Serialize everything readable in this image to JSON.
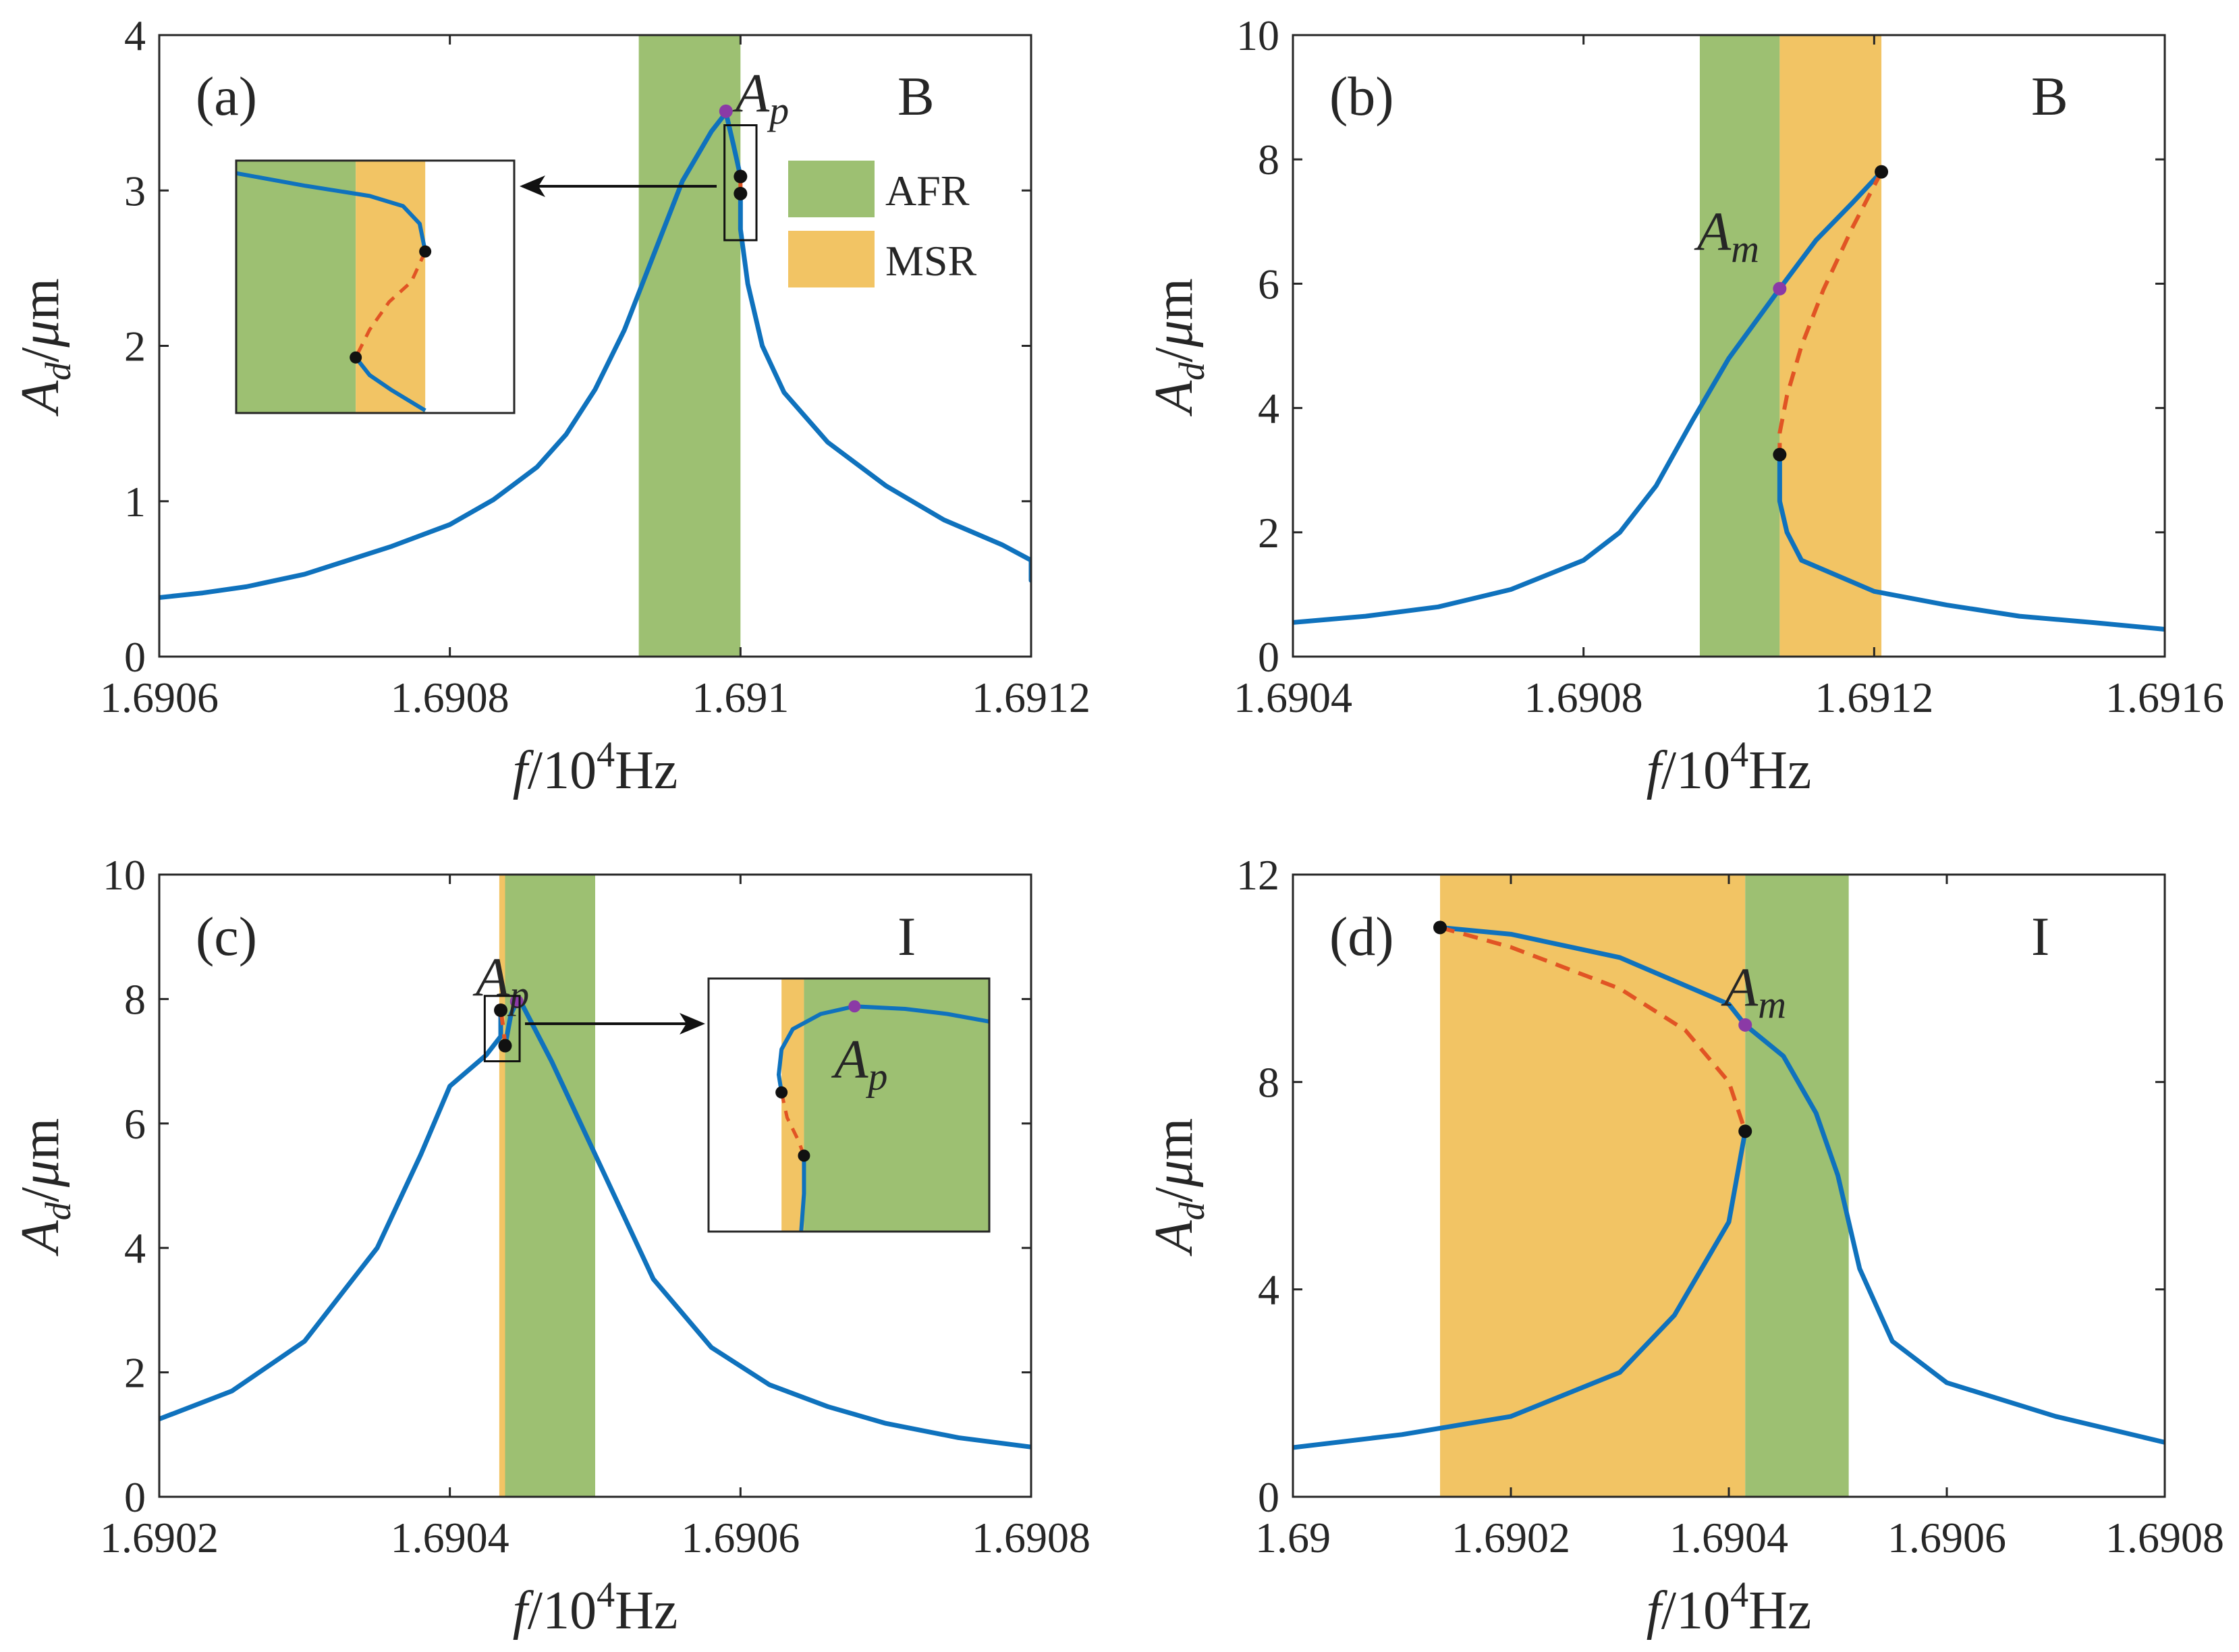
{
  "colors": {
    "afr": "#9dc072",
    "msr": "#f2c464",
    "stable_curve": "#0f72bd",
    "unstable_curve": "#e15424",
    "bifurcation_point": "#111111",
    "special_point": "#8b3aa6",
    "axis": "#262626"
  },
  "legend": {
    "entries": [
      {
        "label": "AFR",
        "color": "#9dc072"
      },
      {
        "label": "MSR",
        "color": "#f2c464"
      }
    ],
    "placement": "panel (a), upper right"
  },
  "axis_text": {
    "y_symbol": "A",
    "y_sub": "d",
    "y_unit_mu": "μ",
    "y_unit": "m",
    "x_symbol": "f",
    "x_base": "10",
    "x_exp": "4",
    "x_unit": "Hz"
  },
  "chart_data": [
    {
      "id": "a",
      "type": "line",
      "panel_label": "(a)",
      "regime_label": "B",
      "xlim": [
        1.6906,
        1.6912
      ],
      "ylim": [
        0,
        4
      ],
      "xticks": [
        1.6906,
        1.6908,
        1.691,
        1.6912
      ],
      "xtick_labels": [
        "1.6906",
        "1.6908",
        "1.691",
        "1.6912"
      ],
      "yticks": [
        0,
        1,
        2,
        3,
        4
      ],
      "ytick_labels": [
        "0",
        "1",
        "2",
        "3",
        "4"
      ],
      "regions": [
        {
          "kind": "AFR",
          "x": [
            1.69093,
            1.691
          ]
        }
      ],
      "stable_branches": [
        [
          [
            1.6906,
            0.38
          ],
          [
            1.69063,
            0.41
          ],
          [
            1.69066,
            0.45
          ],
          [
            1.6907,
            0.53
          ],
          [
            1.69073,
            0.62
          ],
          [
            1.69076,
            0.71
          ],
          [
            1.6908,
            0.85
          ],
          [
            1.69083,
            1.01
          ],
          [
            1.69086,
            1.22
          ],
          [
            1.69088,
            1.43
          ],
          [
            1.6909,
            1.72
          ],
          [
            1.69092,
            2.1
          ],
          [
            1.69094,
            2.58
          ],
          [
            1.69096,
            3.06
          ],
          [
            1.69098,
            3.38
          ],
          [
            1.69099,
            3.5
          ],
          [
            1.690995,
            3.3
          ],
          [
            1.691,
            3.09
          ]
        ],
        [
          [
            1.691,
            2.98
          ],
          [
            1.691,
            2.75
          ],
          [
            1.691005,
            2.4
          ],
          [
            1.691015,
            2.0
          ],
          [
            1.69103,
            1.7
          ],
          [
            1.69106,
            1.38
          ],
          [
            1.6911,
            1.1
          ],
          [
            1.69114,
            0.88
          ],
          [
            1.69118,
            0.72
          ],
          [
            1.6912,
            0.62
          ],
          [
            1.6912,
            0.49
          ]
        ]
      ],
      "unstable_branches": [
        [
          [
            1.691,
            3.09
          ],
          [
            1.691,
            2.98
          ]
        ]
      ],
      "bifurcation_points": [
        [
          1.691,
          3.09
        ],
        [
          1.691,
          2.98
        ]
      ],
      "special_points": [
        {
          "name": "A",
          "sub": "p",
          "x": 1.69099,
          "y": 3.51
        }
      ],
      "inset": {
        "frame": true,
        "regions": [
          {
            "kind": "AFR",
            "x": [
              0,
              0.43
            ]
          },
          {
            "kind": "MSR",
            "x": [
              0.43,
              0.68
            ]
          }
        ],
        "stable_branches": [
          [
            [
              0,
              0.95
            ],
            [
              0.25,
              0.9
            ],
            [
              0.48,
              0.86
            ],
            [
              0.6,
              0.82
            ],
            [
              0.66,
              0.75
            ],
            [
              0.68,
              0.64
            ]
          ],
          [
            [
              0.43,
              0.22
            ],
            [
              0.48,
              0.15
            ],
            [
              0.56,
              0.09
            ],
            [
              0.68,
              0.01
            ]
          ]
        ],
        "unstable_branches": [
          [
            [
              0.68,
              0.64
            ],
            [
              0.63,
              0.52
            ],
            [
              0.55,
              0.44
            ],
            [
              0.48,
              0.33
            ],
            [
              0.43,
              0.22
            ]
          ]
        ],
        "bifurcation_points": [
          [
            0.68,
            0.64
          ],
          [
            0.43,
            0.22
          ]
        ],
        "zoom_box": {
          "x": [
            1.690989,
            1.691011
          ],
          "y": [
            2.68,
            3.42
          ]
        }
      }
    },
    {
      "id": "b",
      "type": "line",
      "panel_label": "(b)",
      "regime_label": "B",
      "xlim": [
        1.6904,
        1.6916
      ],
      "ylim": [
        0,
        10
      ],
      "xticks": [
        1.6904,
        1.6908,
        1.6912,
        1.6916
      ],
      "xtick_labels": [
        "1.6904",
        "1.6908",
        "1.6912",
        "1.6916"
      ],
      "yticks": [
        0,
        2,
        4,
        6,
        8,
        10
      ],
      "ytick_labels": [
        "0",
        "2",
        "4",
        "6",
        "8",
        "10"
      ],
      "regions": [
        {
          "kind": "AFR",
          "x": [
            1.69096,
            1.69107
          ]
        },
        {
          "kind": "MSR",
          "x": [
            1.69107,
            1.69121
          ]
        }
      ],
      "stable_branches": [
        [
          [
            1.6904,
            0.55
          ],
          [
            1.6905,
            0.65
          ],
          [
            1.6906,
            0.8
          ],
          [
            1.6907,
            1.08
          ],
          [
            1.6908,
            1.55
          ],
          [
            1.69085,
            2.0
          ],
          [
            1.6909,
            2.75
          ],
          [
            1.69095,
            3.8
          ],
          [
            1.691,
            4.8
          ],
          [
            1.69107,
            5.92
          ],
          [
            1.69112,
            6.7
          ],
          [
            1.69117,
            7.3
          ],
          [
            1.69121,
            7.8
          ]
        ],
        [
          [
            1.69107,
            3.25
          ],
          [
            1.69107,
            2.5
          ],
          [
            1.69108,
            2.0
          ],
          [
            1.6911,
            1.55
          ],
          [
            1.6912,
            1.05
          ],
          [
            1.6913,
            0.83
          ],
          [
            1.6914,
            0.65
          ],
          [
            1.6915,
            0.55
          ],
          [
            1.6916,
            0.44
          ]
        ]
      ],
      "unstable_branches": [
        [
          [
            1.69121,
            7.8
          ],
          [
            1.69117,
            6.9
          ],
          [
            1.69113,
            5.9
          ],
          [
            1.6911,
            5.0
          ],
          [
            1.69108,
            4.2
          ],
          [
            1.69107,
            3.6
          ],
          [
            1.69107,
            3.25
          ]
        ]
      ],
      "bifurcation_points": [
        [
          1.69121,
          7.8
        ],
        [
          1.69107,
          3.25
        ]
      ],
      "special_points": [
        {
          "name": "A",
          "sub": "m",
          "x": 1.69107,
          "y": 5.92
        }
      ]
    },
    {
      "id": "c",
      "type": "line",
      "panel_label": "(c)",
      "regime_label": "I",
      "xlim": [
        1.6902,
        1.6908
      ],
      "ylim": [
        0,
        10
      ],
      "xticks": [
        1.6902,
        1.6904,
        1.6906,
        1.6908
      ],
      "xtick_labels": [
        "1.6902",
        "1.6904",
        "1.6906",
        "1.6908"
      ],
      "yticks": [
        0,
        2,
        4,
        6,
        8,
        10
      ],
      "ytick_labels": [
        "0",
        "2",
        "4",
        "6",
        "8",
        "10"
      ],
      "regions": [
        {
          "kind": "MSR",
          "x": [
            1.690434,
            1.690438
          ]
        },
        {
          "kind": "AFR",
          "x": [
            1.690438,
            1.6905
          ]
        }
      ],
      "stable_branches": [
        [
          [
            1.6902,
            1.25
          ],
          [
            1.69025,
            1.7
          ],
          [
            1.6903,
            2.5
          ],
          [
            1.69035,
            4.0
          ],
          [
            1.69038,
            5.5
          ],
          [
            1.6904,
            6.6
          ],
          [
            1.690425,
            7.1
          ],
          [
            1.690435,
            7.4
          ],
          [
            1.690435,
            7.82
          ]
        ],
        [
          [
            1.690438,
            7.25
          ],
          [
            1.690442,
            7.75
          ],
          [
            1.690446,
            7.96
          ],
          [
            1.69045,
            7.9
          ],
          [
            1.69047,
            7.0
          ],
          [
            1.69049,
            6.0
          ],
          [
            1.69051,
            5.0
          ],
          [
            1.69054,
            3.5
          ],
          [
            1.69058,
            2.4
          ],
          [
            1.69062,
            1.8
          ],
          [
            1.69066,
            1.45
          ],
          [
            1.6907,
            1.18
          ],
          [
            1.69075,
            0.95
          ],
          [
            1.6908,
            0.8
          ]
        ]
      ],
      "unstable_branches": [
        [
          [
            1.690435,
            7.82
          ],
          [
            1.690437,
            7.5
          ],
          [
            1.690438,
            7.25
          ]
        ]
      ],
      "bifurcation_points": [
        [
          1.690435,
          7.82
        ],
        [
          1.690438,
          7.25
        ]
      ],
      "special_points": [
        {
          "name": "A",
          "sub": "p",
          "x": 1.690446,
          "y": 7.96
        }
      ],
      "inset": {
        "frame": true,
        "regions": [
          {
            "kind": "MSR",
            "x": [
              0.26,
              0.34
            ]
          },
          {
            "kind": "AFR",
            "x": [
              0.34,
              1.0
            ]
          }
        ],
        "stable_branches": [
          [
            [
              0.26,
              0.55
            ],
            [
              0.25,
              0.62
            ],
            [
              0.26,
              0.72
            ],
            [
              0.3,
              0.8
            ],
            [
              0.4,
              0.86
            ],
            [
              0.52,
              0.89
            ],
            [
              0.7,
              0.88
            ],
            [
              0.85,
              0.86
            ],
            [
              1.0,
              0.83
            ]
          ],
          [
            [
              0.34,
              0.3
            ],
            [
              0.34,
              0.15
            ],
            [
              0.33,
              0.0
            ]
          ]
        ],
        "unstable_branches": [
          [
            [
              0.26,
              0.55
            ],
            [
              0.28,
              0.45
            ],
            [
              0.32,
              0.36
            ],
            [
              0.34,
              0.3
            ]
          ]
        ],
        "bifurcation_points": [
          [
            0.26,
            0.55
          ],
          [
            0.34,
            0.3
          ]
        ],
        "special_points": [
          {
            "name": "A",
            "sub": "p",
            "x": 0.52,
            "y": 0.89
          }
        ],
        "zoom_box": {
          "x": [
            1.690424,
            1.690448
          ],
          "y": [
            7.0,
            8.05
          ]
        }
      }
    },
    {
      "id": "d",
      "type": "line",
      "panel_label": "(d)",
      "regime_label": "I",
      "xlim": [
        1.69,
        1.6908
      ],
      "ylim": [
        0,
        12
      ],
      "xticks": [
        1.69,
        1.6902,
        1.6904,
        1.6906,
        1.6908
      ],
      "xtick_labels": [
        "1.69",
        "1.6902",
        "1.6904",
        "1.6906",
        "1.6908"
      ],
      "yticks": [
        0,
        4,
        8,
        12
      ],
      "ytick_labels": [
        "0",
        "4",
        "8",
        "12"
      ],
      "regions": [
        {
          "kind": "MSR",
          "x": [
            1.690135,
            1.690415
          ]
        },
        {
          "kind": "AFR",
          "x": [
            1.690415,
            1.69051
          ]
        }
      ],
      "stable_branches": [
        [
          [
            1.69,
            0.95
          ],
          [
            1.6901,
            1.2
          ],
          [
            1.6902,
            1.55
          ],
          [
            1.6903,
            2.4
          ],
          [
            1.69035,
            3.5
          ],
          [
            1.6904,
            5.3
          ],
          [
            1.690415,
            7.05
          ]
        ],
        [
          [
            1.690135,
            10.98
          ],
          [
            1.6902,
            10.85
          ],
          [
            1.6903,
            10.4
          ],
          [
            1.6904,
            9.5
          ],
          [
            1.690415,
            9.1
          ],
          [
            1.69045,
            8.5
          ],
          [
            1.69048,
            7.4
          ],
          [
            1.6905,
            6.2
          ],
          [
            1.69052,
            4.4
          ],
          [
            1.69055,
            3.0
          ],
          [
            1.6906,
            2.2
          ],
          [
            1.6907,
            1.55
          ],
          [
            1.6908,
            1.05
          ]
        ]
      ],
      "unstable_branches": [
        [
          [
            1.690135,
            10.98
          ],
          [
            1.6902,
            10.6
          ],
          [
            1.6903,
            9.8
          ],
          [
            1.69036,
            9.0
          ],
          [
            1.6904,
            8.0
          ],
          [
            1.690415,
            7.05
          ]
        ]
      ],
      "bifurcation_points": [
        [
          1.690135,
          10.98
        ],
        [
          1.690415,
          7.05
        ]
      ],
      "special_points": [
        {
          "name": "A",
          "sub": "m",
          "x": 1.690415,
          "y": 9.1
        }
      ]
    }
  ]
}
